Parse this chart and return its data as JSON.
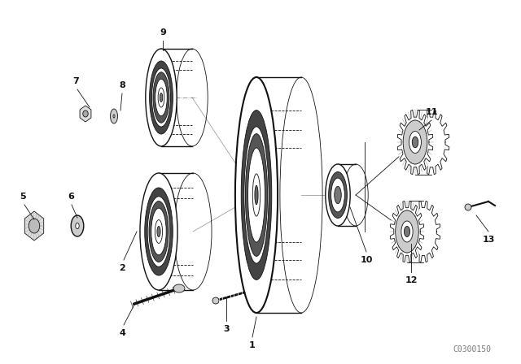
{
  "bg_color": "#ffffff",
  "line_color": "#111111",
  "fig_width": 6.4,
  "fig_height": 4.48,
  "dpi": 100,
  "watermark": "C0300150",
  "watermark_fontsize": 7,
  "label_fontsize": 8,
  "label_fontweight": "bold"
}
